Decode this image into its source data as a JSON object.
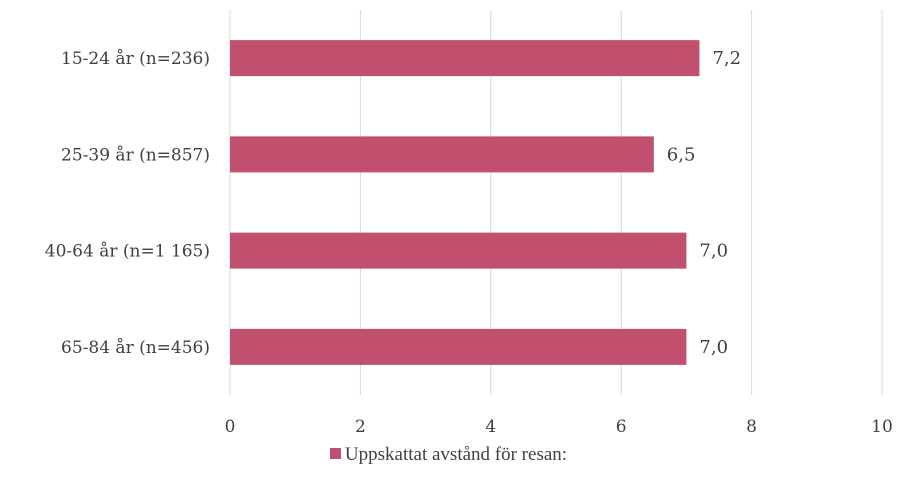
{
  "chart_data": {
    "type": "bar",
    "orientation": "horizontal",
    "categories": [
      "15-24 år (n=236)",
      "25-39 år (n=857)",
      "40-64 år (n=1 165)",
      "65-84 år (n=456)"
    ],
    "series": [
      {
        "name": "Uppskattat avstånd för resan:",
        "values": [
          7.2,
          6.5,
          7.0,
          7.0
        ],
        "value_labels": [
          "7,2",
          "6,5",
          "7,0",
          "7,0"
        ],
        "color": "#c0506e"
      }
    ],
    "xlim": [
      0,
      10
    ],
    "xticks": [
      0,
      2,
      4,
      6,
      8,
      10
    ],
    "xtick_labels": [
      "0",
      "2",
      "4",
      "6",
      "8",
      "10"
    ],
    "grid": "vertical",
    "legend": "bottom-center"
  }
}
